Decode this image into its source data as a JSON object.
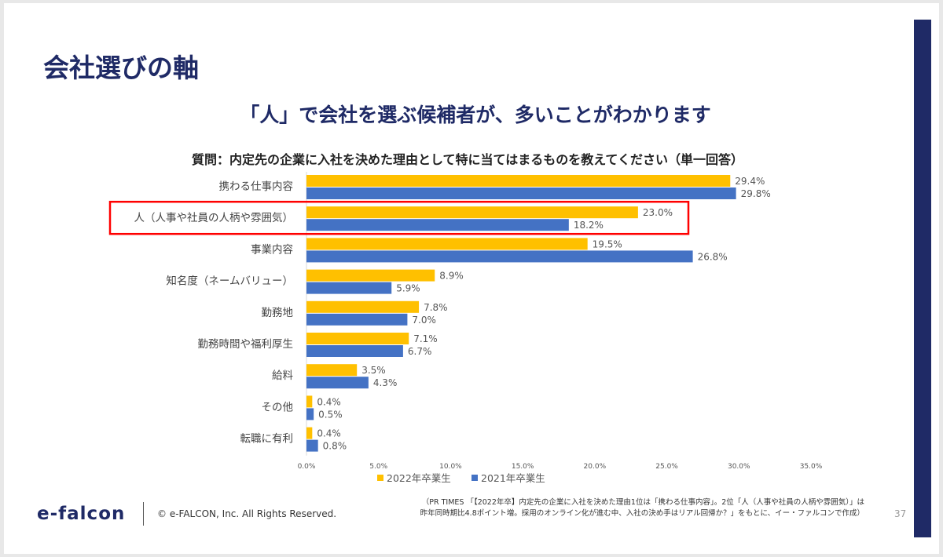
{
  "slide": {
    "title": "会社選びの軸",
    "subtitle": "「人」で会社を選ぶ候補者が、多いことがわかります",
    "question": "質問：内定先の企業に入社を決めた理由として特に当てはまるものを教えてください（単一回答）",
    "page_number": "37"
  },
  "footer": {
    "logo": "e-falcon",
    "copyright": "© e-FALCON, Inc. All Rights Reserved.",
    "source_line1": "（PR TIMES 「【2022年卒】内定先の企業に入社を決めた理由1位は「携わる仕事内容」。2位「人（人事や社員の人柄や雰囲気）」は",
    "source_line2": "昨年同時期比4.8ポイント増。採用のオンライン化が進む中、入社の決め手はリアル回帰か？」をもとに、イー・ファルコンで作成）"
  },
  "colors": {
    "series_2022": "#ffc000",
    "series_2021": "#4472c4",
    "highlight": "#ff0000",
    "navy": "#1f2a66"
  },
  "chart_data": {
    "type": "bar",
    "orientation": "horizontal",
    "categories": [
      "携わる仕事内容",
      "人（人事や社員の人柄や雰囲気）",
      "事業内容",
      "知名度（ネームバリュー）",
      "勤務地",
      "勤務時間や福利厚生",
      "給料",
      "その他",
      "転職に有利"
    ],
    "series": [
      {
        "name": "2022年卒業生",
        "values": [
          29.4,
          23.0,
          19.5,
          8.9,
          7.8,
          7.1,
          3.5,
          0.4,
          0.4
        ],
        "labels": [
          "29.4%",
          "23.0%",
          "19.5%",
          "8.9%",
          "7.8%",
          "7.1%",
          "3.5%",
          "0.4%",
          "0.4%"
        ]
      },
      {
        "name": "2021年卒業生",
        "values": [
          29.8,
          18.2,
          26.8,
          5.9,
          7.0,
          6.7,
          4.3,
          0.5,
          0.8
        ],
        "labels": [
          "29.8%",
          "18.2%",
          "26.8%",
          "5.9%",
          "7.0%",
          "6.7%",
          "4.3%",
          "0.5%",
          "0.8%"
        ]
      }
    ],
    "xlim": [
      0,
      35
    ],
    "xticks": [
      0,
      5,
      10,
      15,
      20,
      25,
      30,
      35
    ],
    "xtick_labels": [
      "0.0%",
      "5.0%",
      "10.0%",
      "15.0%",
      "20.0%",
      "25.0%",
      "30.0%",
      "35.0%"
    ],
    "highlighted_category_index": 1,
    "legend_position": "bottom"
  }
}
